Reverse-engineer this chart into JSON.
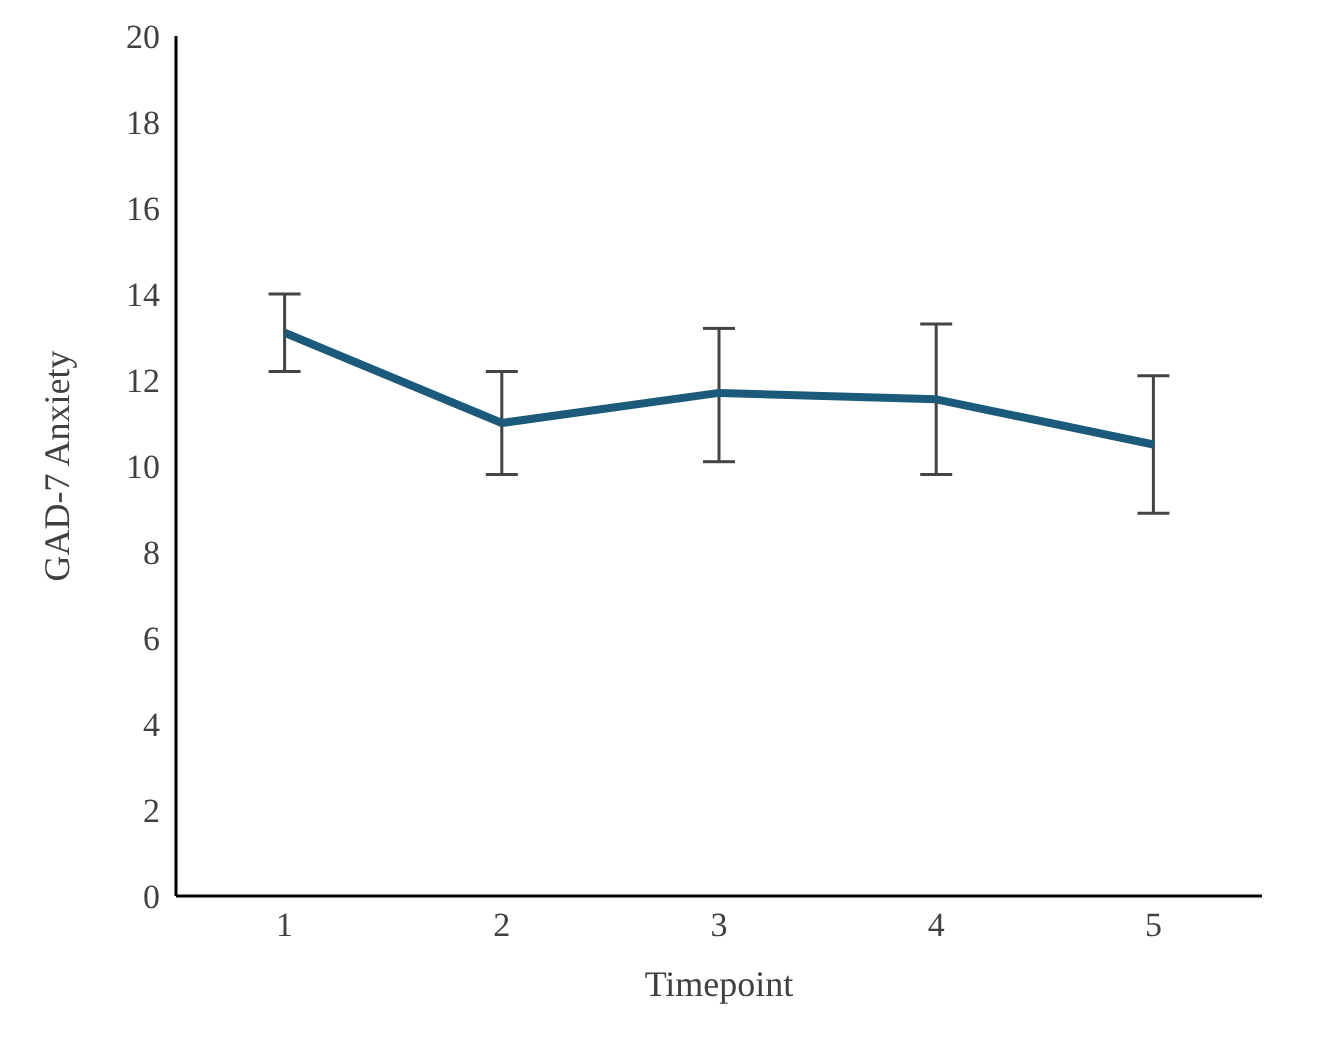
{
  "chart_data": {
    "type": "line",
    "xlabel": "Timepoint",
    "ylabel": "GAD-7 Anxiety",
    "categories": [
      "1",
      "2",
      "3",
      "4",
      "5"
    ],
    "series": [
      {
        "color": "#1b5a7a",
        "values": [
          13.1,
          11.0,
          11.7,
          11.55,
          10.5
        ],
        "errors": [
          [
            12.2,
            14.0
          ],
          [
            9.8,
            12.2
          ],
          [
            10.1,
            13.2
          ],
          [
            9.8,
            13.3
          ],
          [
            8.9,
            12.1
          ]
        ]
      }
    ],
    "ylim": [
      0,
      20
    ],
    "yticks": [
      0,
      2,
      4,
      6,
      8,
      10,
      12,
      14,
      16,
      18,
      20
    ],
    "grid": false,
    "legend": false,
    "marker": "none",
    "line_style": "solid"
  }
}
